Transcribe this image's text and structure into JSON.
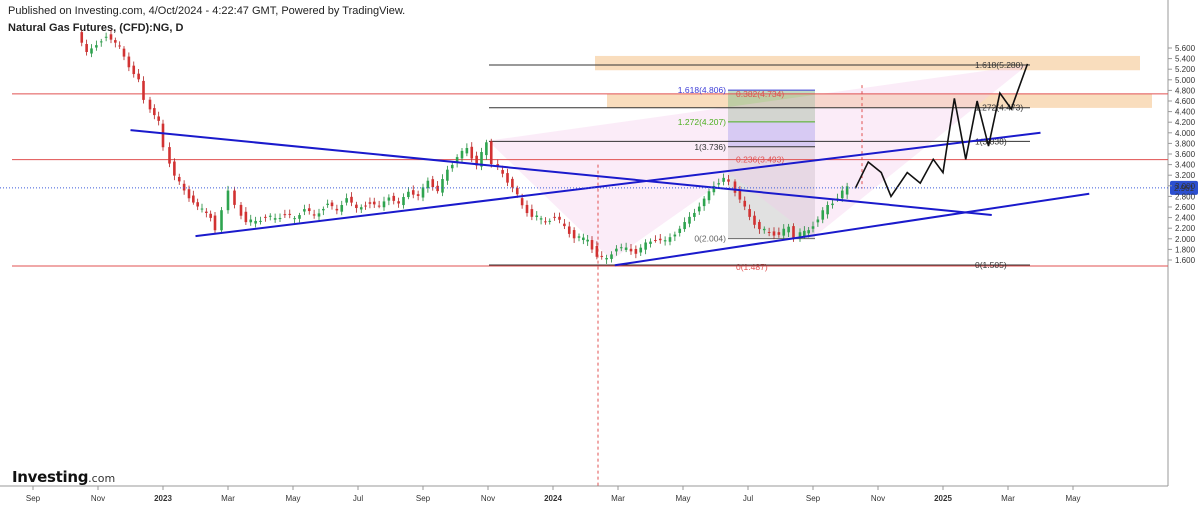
{
  "header": {
    "published": "Published on Investing.com, 4/Oct/2024 - 4:22:47 GMT, Powered by TradingView.",
    "title": "Natural Gas Futures, (CFD):NG, D"
  },
  "logo": {
    "name": "Investing",
    "suffix": ".com"
  },
  "chart_data": {
    "type": "candlestick",
    "y_ticks": [
      "5.600",
      "5.400",
      "5.200",
      "5.000",
      "4.800",
      "4.600",
      "4.400",
      "4.200",
      "4.000",
      "3.800",
      "3.600",
      "3.400",
      "3.200",
      "3.000",
      "2.800",
      "2.600",
      "2.400",
      "2.200",
      "2.000",
      "1.800",
      "1.600"
    ],
    "ylim": [
      1.45,
      5.75
    ],
    "x_ticks": [
      {
        "label": "Sep",
        "month": -4
      },
      {
        "label": "Nov",
        "month": -2
      },
      {
        "label": "2023",
        "month": 0
      },
      {
        "label": "Mar",
        "month": 2
      },
      {
        "label": "May",
        "month": 4
      },
      {
        "label": "Jul",
        "month": 6
      },
      {
        "label": "Sep",
        "month": 8
      },
      {
        "label": "Nov",
        "month": 10
      },
      {
        "label": "2024",
        "month": 12
      },
      {
        "label": "Mar",
        "month": 14
      },
      {
        "label": "May",
        "month": 16
      },
      {
        "label": "Jul",
        "month": 18
      },
      {
        "label": "Sep",
        "month": 20
      },
      {
        "label": "Nov",
        "month": 22
      },
      {
        "label": "2025",
        "month": 24
      },
      {
        "label": "Mar",
        "month": 26
      },
      {
        "label": "May",
        "month": 28
      }
    ],
    "current_price": "2.961",
    "price_path": [
      [
        -2.5,
        5.9
      ],
      [
        -2.2,
        5.5
      ],
      [
        -1.6,
        5.85
      ],
      [
        -1.2,
        5.6
      ],
      [
        -0.9,
        5.25
      ],
      [
        -0.6,
        5.0
      ],
      [
        -0.4,
        4.6
      ],
      [
        0.0,
        4.2
      ],
      [
        0.2,
        3.7
      ],
      [
        0.5,
        3.2
      ],
      [
        0.8,
        2.9
      ],
      [
        1.2,
        2.6
      ],
      [
        1.6,
        2.4
      ],
      [
        1.8,
        2.2
      ],
      [
        2.0,
        2.5
      ],
      [
        2.2,
        2.95
      ],
      [
        2.4,
        2.6
      ],
      [
        2.7,
        2.35
      ],
      [
        3.0,
        2.3
      ],
      [
        3.3,
        2.45
      ],
      [
        3.6,
        2.35
      ],
      [
        3.9,
        2.5
      ],
      [
        4.2,
        2.35
      ],
      [
        4.5,
        2.6
      ],
      [
        4.8,
        2.4
      ],
      [
        5.2,
        2.7
      ],
      [
        5.5,
        2.5
      ],
      [
        5.8,
        2.8
      ],
      [
        6.1,
        2.55
      ],
      [
        6.5,
        2.7
      ],
      [
        6.8,
        2.6
      ],
      [
        7.1,
        2.8
      ],
      [
        7.4,
        2.65
      ],
      [
        7.7,
        2.9
      ],
      [
        8.0,
        2.8
      ],
      [
        8.3,
        3.1
      ],
      [
        8.6,
        2.9
      ],
      [
        8.9,
        3.3
      ],
      [
        9.2,
        3.55
      ],
      [
        9.5,
        3.7
      ],
      [
        9.8,
        3.4
      ],
      [
        10.1,
        3.8
      ],
      [
        10.3,
        3.45
      ],
      [
        10.6,
        3.2
      ],
      [
        10.9,
        3.0
      ],
      [
        11.2,
        2.6
      ],
      [
        11.5,
        2.45
      ],
      [
        11.9,
        2.3
      ],
      [
        12.2,
        2.45
      ],
      [
        12.5,
        2.2
      ],
      [
        12.8,
        2.05
      ],
      [
        13.2,
        1.95
      ],
      [
        13.5,
        1.7
      ],
      [
        13.8,
        1.6
      ],
      [
        14.1,
        1.85
      ],
      [
        14.4,
        1.8
      ],
      [
        14.7,
        1.75
      ],
      [
        15.0,
        1.9
      ],
      [
        15.3,
        2.0
      ],
      [
        15.6,
        1.95
      ],
      [
        15.9,
        2.1
      ],
      [
        16.2,
        2.3
      ],
      [
        16.5,
        2.5
      ],
      [
        16.8,
        2.75
      ],
      [
        17.1,
        3.0
      ],
      [
        17.4,
        3.15
      ],
      [
        17.6,
        3.05
      ],
      [
        17.9,
        2.75
      ],
      [
        18.2,
        2.4
      ],
      [
        18.5,
        2.2
      ],
      [
        18.8,
        2.1
      ],
      [
        19.1,
        2.1
      ],
      [
        19.4,
        2.2
      ],
      [
        19.6,
        2.05
      ],
      [
        20.0,
        2.15
      ],
      [
        20.3,
        2.4
      ],
      [
        20.6,
        2.6
      ],
      [
        20.9,
        2.8
      ],
      [
        21.2,
        2.95
      ]
    ],
    "projection_path": [
      [
        21.3,
        2.95
      ],
      [
        21.7,
        3.45
      ],
      [
        22.1,
        3.25
      ],
      [
        22.4,
        2.8
      ],
      [
        22.9,
        3.25
      ],
      [
        23.3,
        3.05
      ],
      [
        23.7,
        3.5
      ],
      [
        24.0,
        3.25
      ],
      [
        24.35,
        4.65
      ],
      [
        24.7,
        3.5
      ],
      [
        25.05,
        4.6
      ],
      [
        25.4,
        3.75
      ],
      [
        25.75,
        4.75
      ],
      [
        26.1,
        4.45
      ],
      [
        26.6,
        5.3
      ]
    ],
    "trendlines": [
      {
        "name": "descending-resistance",
        "from": [
          -1.0,
          4.05
        ],
        "to": [
          25.5,
          2.45
        ]
      },
      {
        "name": "ascending-support-upper",
        "from": [
          1.0,
          2.05
        ],
        "to": [
          27.0,
          4.0
        ]
      },
      {
        "name": "ascending-support-lower",
        "from": [
          13.9,
          1.5
        ],
        "to": [
          28.5,
          2.85
        ]
      }
    ],
    "horizontal_levels": [
      {
        "price": 4.734,
        "label": "0.382(4.734)",
        "color": "#e05050"
      },
      {
        "price": 3.493,
        "label": "0.236(3.493)",
        "color": "#e05050"
      },
      {
        "price": 1.487,
        "label": "0(1.487)",
        "color": "#e05050"
      }
    ],
    "fib_extension": [
      {
        "price": 5.28,
        "label": "1.618(5.280)"
      },
      {
        "price": 4.473,
        "label": "1.272(4.473)"
      },
      {
        "price": 3.838,
        "label": "1(3.838)"
      },
      {
        "price": 1.505,
        "label": "0(1.505)"
      }
    ],
    "fib_projection_box": [
      {
        "price": 4.806,
        "label": "1.618(4.806)",
        "color": "#3b3bd6"
      },
      {
        "price": 4.207,
        "label": "1.272(4.207)",
        "color": "#4caf20"
      },
      {
        "price": 3.736,
        "label": "1(3.736)",
        "color": "#333333"
      },
      {
        "price": 2.004,
        "label": "0(2.004)",
        "color": "#666666"
      }
    ],
    "target_zones": [
      {
        "low": 5.18,
        "high": 5.45
      },
      {
        "low": 4.47,
        "high": 4.73
      }
    ]
  }
}
